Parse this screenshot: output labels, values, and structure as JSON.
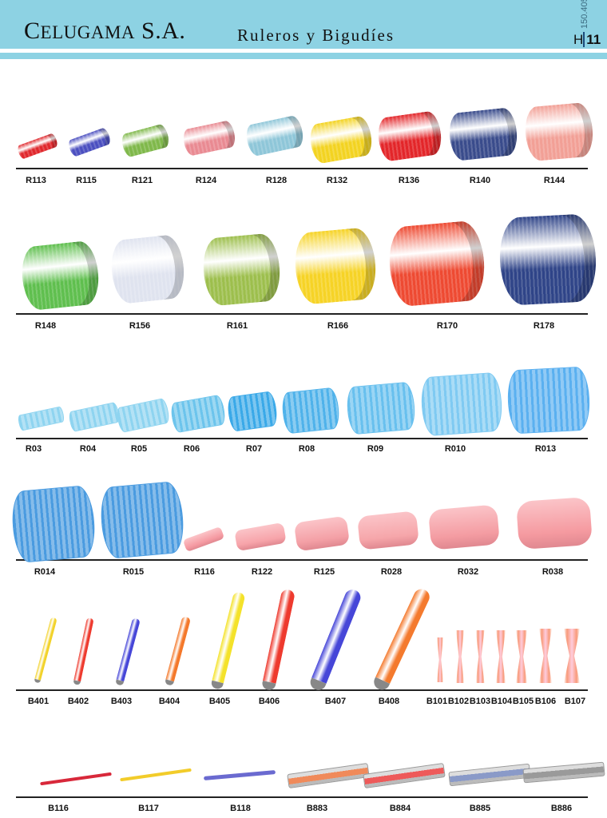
{
  "header": {
    "brand_first": "C",
    "brand_rest": "ELUGAMA",
    "brand_suffix": "S.A.",
    "subtitle": "Ruleros y Bigudíes",
    "catalog_code": "150.405",
    "section_letter": "H",
    "page_number": "11",
    "color": "#8dd2e3"
  },
  "rows": [
    {
      "items": [
        {
          "label": "R113",
          "color": "#e0282d"
        },
        {
          "label": "R115",
          "color": "#4b4fc0"
        },
        {
          "label": "R121",
          "color": "#7fb84a"
        },
        {
          "label": "R124",
          "color": "#e98a92"
        },
        {
          "label": "R128",
          "color": "#8ec6d8"
        },
        {
          "label": "R132",
          "color": "#f3d321"
        },
        {
          "label": "R136",
          "color": "#e3262a"
        },
        {
          "label": "R140",
          "color": "#3a4c8c"
        },
        {
          "label": "R144",
          "color": "#f2a096"
        }
      ]
    },
    {
      "items": [
        {
          "label": "R148",
          "color": "#5fbf4e"
        },
        {
          "label": "R156",
          "color": "#dfe3ef"
        },
        {
          "label": "R161",
          "color": "#9dbf4d"
        },
        {
          "label": "R166",
          "color": "#f6d326"
        },
        {
          "label": "R170",
          "color": "#ee4a32"
        },
        {
          "label": "R178",
          "color": "#2f4488"
        }
      ]
    },
    {
      "items": [
        {
          "label": "R03",
          "color": "#8ed4f0"
        },
        {
          "label": "R04",
          "color": "#8ed4f0"
        },
        {
          "label": "R05",
          "color": "#8ed4f0"
        },
        {
          "label": "R06",
          "color": "#6cc4ec"
        },
        {
          "label": "R07",
          "color": "#3aa9e8"
        },
        {
          "label": "R08",
          "color": "#4fb2ea"
        },
        {
          "label": "R09",
          "color": "#68c0ee"
        },
        {
          "label": "R010",
          "color": "#7fcaf2"
        },
        {
          "label": "R013",
          "color": "#5ab0f0"
        }
      ]
    },
    {
      "items": [
        {
          "label": "R014",
          "color": "#4a9be0"
        },
        {
          "label": "R015",
          "color": "#4a9be0"
        },
        {
          "label": "R116",
          "color": "#f59aa2"
        },
        {
          "label": "R122",
          "color": "#f7a4aa"
        },
        {
          "label": "R125",
          "color": "#f4a0a6"
        },
        {
          "label": "R028",
          "color": "#f6a6aa"
        },
        {
          "label": "R032",
          "color": "#f49ca2"
        },
        {
          "label": "R038",
          "color": "#f59aa0"
        }
      ]
    },
    {
      "items": [
        {
          "label": "B401",
          "color": "#f2d22a"
        },
        {
          "label": "B402",
          "color": "#ee3a2e"
        },
        {
          "label": "B403",
          "color": "#4646d8"
        },
        {
          "label": "B404",
          "color": "#f4782a"
        },
        {
          "label": "B405",
          "color": "#f4e22a"
        },
        {
          "label": "B406",
          "color": "#ee3a2e"
        },
        {
          "label": "B407",
          "color": "#4646d8"
        },
        {
          "label": "B408",
          "color": "#f47a2e"
        },
        {
          "label": "B101",
          "color": "#f89a7a"
        },
        {
          "label": "B102",
          "color": "#f89a7a"
        },
        {
          "label": "B103",
          "color": "#f89a7a"
        },
        {
          "label": "B104",
          "color": "#f89a7a"
        },
        {
          "label": "B105",
          "color": "#f89a7a"
        },
        {
          "label": "B106",
          "color": "#f89a7a"
        },
        {
          "label": "B107",
          "color": "#f89a7a"
        }
      ]
    },
    {
      "items": [
        {
          "label": "B116",
          "color": "#d8283a"
        },
        {
          "label": "B117",
          "color": "#f2cc2a"
        },
        {
          "label": "B118",
          "color": "#6a6ad0"
        },
        {
          "label": "B883",
          "color": "#f08a5a"
        },
        {
          "label": "B884",
          "color": "#ee5a5a"
        },
        {
          "label": "B885",
          "color": "#8a9ac8"
        },
        {
          "label": "B886",
          "color": "#9a9a9a"
        }
      ]
    }
  ]
}
